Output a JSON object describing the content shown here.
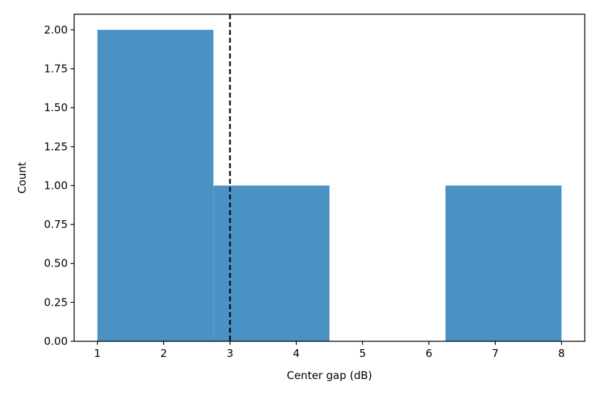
{
  "chart_data": {
    "type": "bar",
    "subtype": "histogram",
    "xlabel": "Center gap (dB)",
    "ylabel": "Count",
    "xlim": [
      0.65,
      8.35
    ],
    "ylim": [
      0,
      2.1
    ],
    "bins": [
      {
        "start": 1.0,
        "end": 2.75,
        "count": 2
      },
      {
        "start": 2.75,
        "end": 4.5,
        "count": 1
      },
      {
        "start": 4.5,
        "end": 6.25,
        "count": 0
      },
      {
        "start": 6.25,
        "end": 8.0,
        "count": 1
      }
    ],
    "xticks": [
      1,
      2,
      3,
      4,
      5,
      6,
      7,
      8
    ],
    "xtick_labels": [
      "1",
      "2",
      "3",
      "4",
      "5",
      "6",
      "7",
      "8"
    ],
    "yticks": [
      0,
      0.25,
      0.5,
      0.75,
      1.0,
      1.25,
      1.5,
      1.75,
      2.0
    ],
    "ytick_labels": [
      "0.00",
      "0.25",
      "0.50",
      "0.75",
      "1.00",
      "1.25",
      "1.50",
      "1.75",
      "2.00"
    ],
    "reference_line": {
      "x": 3,
      "style": "dashed",
      "color": "#000000"
    },
    "bar_color": "#4a92c4",
    "grid": false,
    "legend": "none"
  }
}
